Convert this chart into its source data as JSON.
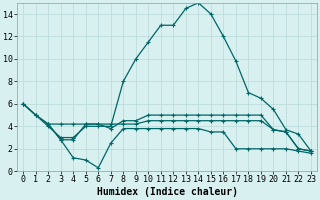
{
  "xlabel": "Humidex (Indice chaleur)",
  "bg_color": "#d8f0f0",
  "grid_color": "#b8d8d8",
  "line_color": "#006666",
  "xlim": [
    -0.5,
    23.5
  ],
  "ylim": [
    0,
    15
  ],
  "xticks": [
    0,
    1,
    2,
    3,
    4,
    5,
    6,
    7,
    8,
    9,
    10,
    11,
    12,
    13,
    14,
    15,
    16,
    17,
    18,
    19,
    20,
    21,
    22,
    23
  ],
  "yticks": [
    0,
    2,
    4,
    6,
    8,
    10,
    12,
    14
  ],
  "line_big_x": [
    0,
    1,
    2,
    3,
    4,
    5,
    6,
    7,
    8,
    9,
    10,
    11,
    12,
    13,
    14,
    15,
    16,
    17,
    18,
    19,
    20,
    21,
    22,
    23
  ],
  "line_big_y": [
    6,
    5,
    4,
    3,
    3,
    4,
    4,
    4,
    8,
    10,
    11.5,
    13,
    13,
    14.5,
    15,
    14,
    12,
    9.8,
    7,
    6.5,
    5.5,
    3.7,
    3.3,
    1.8
  ],
  "line_mid1_x": [
    0,
    1,
    2,
    3,
    4,
    5,
    6,
    7,
    8,
    9,
    10,
    11,
    12,
    13,
    14,
    15,
    16,
    17,
    18,
    19,
    20,
    21,
    22,
    23
  ],
  "line_mid1_y": [
    6,
    5,
    4.2,
    2.8,
    2.8,
    4.2,
    4.2,
    3.8,
    4.5,
    4.5,
    5,
    5,
    5,
    5,
    5,
    5,
    5,
    5,
    5,
    5,
    3.7,
    3.5,
    2,
    1.8
  ],
  "line_low1_x": [
    0,
    1,
    2,
    3,
    4,
    5,
    6,
    7,
    8,
    9,
    10,
    11,
    12,
    13,
    14,
    15,
    16,
    17,
    18,
    19,
    20,
    21,
    22,
    23
  ],
  "line_low1_y": [
    6,
    5,
    4.2,
    4.2,
    4.2,
    4.2,
    4.2,
    4.2,
    4.2,
    4.2,
    4.5,
    4.5,
    4.5,
    4.5,
    4.5,
    4.5,
    4.5,
    4.5,
    4.5,
    4.5,
    3.7,
    3.5,
    2,
    1.8
  ],
  "line_low2_x": [
    2,
    3,
    4,
    5,
    6,
    7,
    8,
    9,
    10,
    11,
    12,
    13,
    14,
    15,
    16,
    17,
    18,
    19,
    20,
    21,
    22,
    23
  ],
  "line_low2_y": [
    4.2,
    2.8,
    1.2,
    1.0,
    0.3,
    2.5,
    3.8,
    3.8,
    3.8,
    3.8,
    3.8,
    3.8,
    3.8,
    3.5,
    3.5,
    2.0,
    2.0,
    2.0,
    2.0,
    2.0,
    1.8,
    1.6
  ],
  "xlabel_fontsize": 7,
  "tick_fontsize": 6
}
